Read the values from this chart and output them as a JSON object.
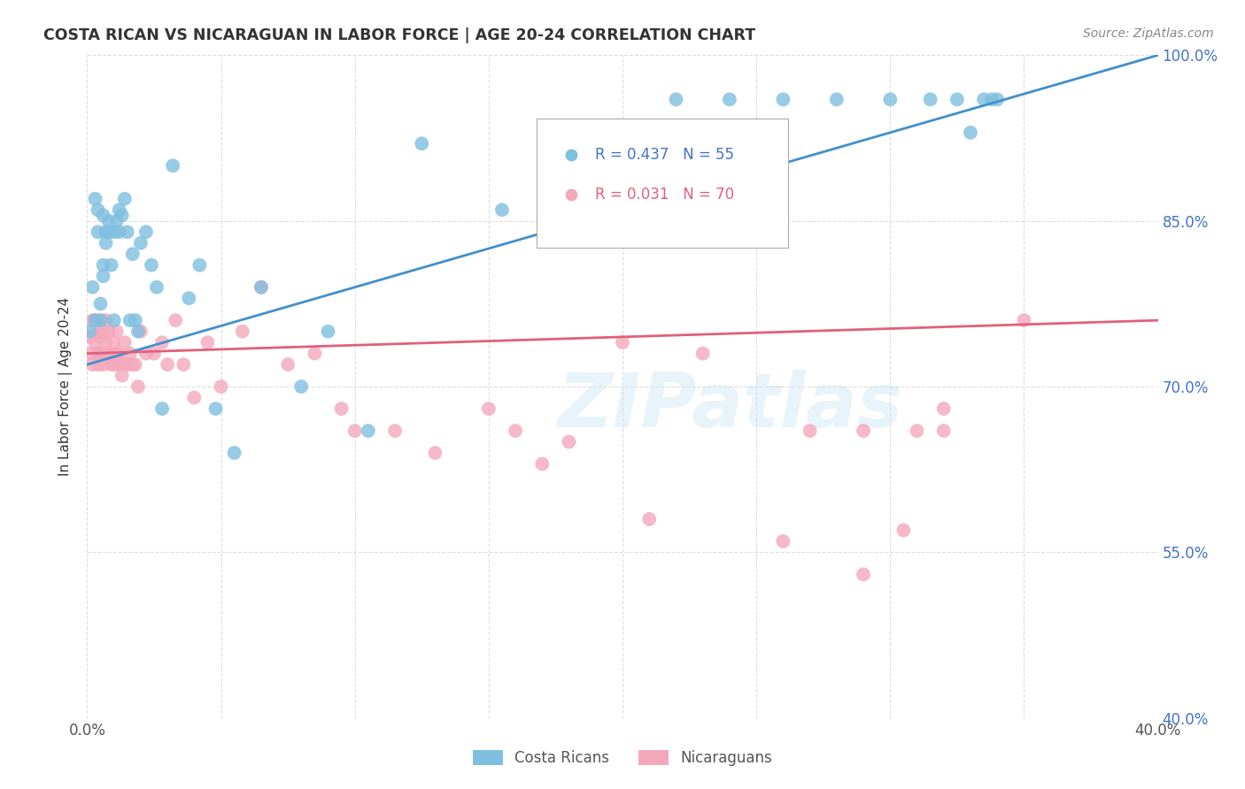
{
  "title": "COSTA RICAN VS NICARAGUAN IN LABOR FORCE | AGE 20-24 CORRELATION CHART",
  "source": "Source: ZipAtlas.com",
  "ylabel": "In Labor Force | Age 20-24",
  "xlim": [
    0.0,
    0.4
  ],
  "ylim": [
    0.4,
    1.0
  ],
  "xticks": [
    0.0,
    0.05,
    0.1,
    0.15,
    0.2,
    0.25,
    0.3,
    0.35,
    0.4
  ],
  "xtick_labels": [
    "0.0%",
    "",
    "",
    "",
    "",
    "",
    "",
    "",
    "40.0%"
  ],
  "yticks": [
    0.4,
    0.55,
    0.7,
    0.85,
    1.0
  ],
  "ytick_labels": [
    "40.0%",
    "55.0%",
    "70.0%",
    "85.0%",
    "100.0%"
  ],
  "blue_color": "#7fbfdf",
  "pink_color": "#f4a8bc",
  "line_blue": "#4090cc",
  "line_pink": "#e0607a",
  "legend_label_blue": "Costa Ricans",
  "legend_label_pink": "Nicaraguans",
  "watermark": "ZIPatlas",
  "costa_rican_x": [
    0.001,
    0.002,
    0.003,
    0.003,
    0.004,
    0.004,
    0.005,
    0.005,
    0.006,
    0.006,
    0.006,
    0.007,
    0.007,
    0.008,
    0.008,
    0.009,
    0.01,
    0.01,
    0.011,
    0.012,
    0.012,
    0.013,
    0.014,
    0.015,
    0.016,
    0.017,
    0.018,
    0.019,
    0.02,
    0.022,
    0.024,
    0.026,
    0.028,
    0.032,
    0.038,
    0.042,
    0.048,
    0.055,
    0.065,
    0.08,
    0.09,
    0.105,
    0.125,
    0.155,
    0.22,
    0.24,
    0.26,
    0.28,
    0.3,
    0.315,
    0.325,
    0.33,
    0.335,
    0.338,
    0.34
  ],
  "costa_rican_y": [
    0.75,
    0.79,
    0.76,
    0.87,
    0.84,
    0.86,
    0.775,
    0.76,
    0.8,
    0.81,
    0.855,
    0.83,
    0.84,
    0.85,
    0.84,
    0.81,
    0.76,
    0.84,
    0.85,
    0.86,
    0.84,
    0.855,
    0.87,
    0.84,
    0.76,
    0.82,
    0.76,
    0.75,
    0.83,
    0.84,
    0.81,
    0.79,
    0.68,
    0.9,
    0.78,
    0.81,
    0.68,
    0.64,
    0.79,
    0.7,
    0.75,
    0.66,
    0.92,
    0.86,
    0.96,
    0.96,
    0.96,
    0.96,
    0.96,
    0.96,
    0.96,
    0.93,
    0.96,
    0.96,
    0.96
  ],
  "nicaraguan_x": [
    0.001,
    0.001,
    0.002,
    0.002,
    0.003,
    0.003,
    0.004,
    0.004,
    0.004,
    0.005,
    0.005,
    0.005,
    0.006,
    0.006,
    0.006,
    0.007,
    0.007,
    0.007,
    0.008,
    0.008,
    0.009,
    0.009,
    0.01,
    0.01,
    0.011,
    0.011,
    0.012,
    0.012,
    0.013,
    0.014,
    0.014,
    0.015,
    0.016,
    0.017,
    0.018,
    0.019,
    0.02,
    0.022,
    0.025,
    0.028,
    0.03,
    0.033,
    0.036,
    0.04,
    0.045,
    0.05,
    0.058,
    0.065,
    0.075,
    0.085,
    0.1,
    0.115,
    0.13,
    0.15,
    0.17,
    0.2,
    0.23,
    0.27,
    0.32,
    0.35,
    0.095,
    0.16,
    0.18,
    0.21,
    0.26,
    0.29,
    0.305,
    0.29,
    0.31,
    0.32
  ],
  "nicaraguan_y": [
    0.745,
    0.73,
    0.76,
    0.72,
    0.74,
    0.76,
    0.73,
    0.75,
    0.72,
    0.745,
    0.73,
    0.76,
    0.73,
    0.75,
    0.72,
    0.74,
    0.73,
    0.76,
    0.75,
    0.73,
    0.73,
    0.72,
    0.74,
    0.72,
    0.75,
    0.73,
    0.73,
    0.72,
    0.71,
    0.72,
    0.74,
    0.72,
    0.73,
    0.72,
    0.72,
    0.7,
    0.75,
    0.73,
    0.73,
    0.74,
    0.72,
    0.76,
    0.72,
    0.69,
    0.74,
    0.7,
    0.75,
    0.79,
    0.72,
    0.73,
    0.66,
    0.66,
    0.64,
    0.68,
    0.63,
    0.74,
    0.73,
    0.66,
    0.66,
    0.76,
    0.68,
    0.66,
    0.65,
    0.58,
    0.56,
    0.53,
    0.57,
    0.66,
    0.66,
    0.68
  ]
}
